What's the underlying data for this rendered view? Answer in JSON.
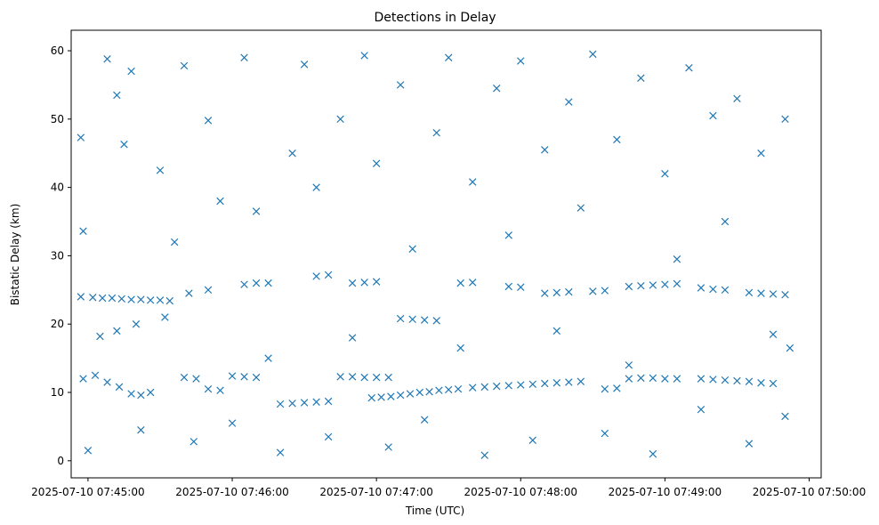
{
  "chart_data": {
    "type": "scatter",
    "title": "Detections in Delay",
    "xlabel": "Time (UTC)",
    "ylabel": "Bistatic Delay (km)",
    "x_unit": "time",
    "xlim": [
      "2025-07-10 07:44:53",
      "2025-07-10 07:50:05"
    ],
    "ylim": [
      -2.5,
      63
    ],
    "x_ticks": [
      "2025-07-10 07:45:00",
      "2025-07-10 07:46:00",
      "2025-07-10 07:47:00",
      "2025-07-10 07:48:00",
      "2025-07-10 07:49:00",
      "2025-07-10 07:50:00"
    ],
    "y_ticks": [
      0,
      10,
      20,
      30,
      40,
      50,
      60
    ],
    "grid": false,
    "legend": "none",
    "marker": "x",
    "color": "#1f77b4",
    "series": [
      {
        "points": [
          [
            "07:44:57",
            24.0
          ],
          [
            "07:45:02",
            23.9
          ],
          [
            "07:45:06",
            23.8
          ],
          [
            "07:45:10",
            23.8
          ],
          [
            "07:45:14",
            23.7
          ],
          [
            "07:45:18",
            23.6
          ],
          [
            "07:45:22",
            23.6
          ],
          [
            "07:45:26",
            23.5
          ],
          [
            "07:45:30",
            23.5
          ],
          [
            "07:45:34",
            23.4
          ],
          [
            "07:44:58",
            12.0
          ],
          [
            "07:45:03",
            12.5
          ],
          [
            "07:45:08",
            11.5
          ],
          [
            "07:45:13",
            10.8
          ],
          [
            "07:45:18",
            9.8
          ],
          [
            "07:45:22",
            9.6
          ],
          [
            "07:45:26",
            10.0
          ],
          [
            "07:45:40",
            12.2
          ],
          [
            "07:45:45",
            12.0
          ],
          [
            "07:45:50",
            10.5
          ],
          [
            "07:45:55",
            10.3
          ],
          [
            "07:46:00",
            12.4
          ],
          [
            "07:46:05",
            12.3
          ],
          [
            "07:46:10",
            12.2
          ],
          [
            "07:46:20",
            8.3
          ],
          [
            "07:46:25",
            8.4
          ],
          [
            "07:46:30",
            8.5
          ],
          [
            "07:46:35",
            8.6
          ],
          [
            "07:46:40",
            8.7
          ],
          [
            "07:46:45",
            12.3
          ],
          [
            "07:46:50",
            12.3
          ],
          [
            "07:46:55",
            12.2
          ],
          [
            "07:47:00",
            12.2
          ],
          [
            "07:47:05",
            12.2
          ],
          [
            "07:46:58",
            9.2
          ],
          [
            "07:47:02",
            9.3
          ],
          [
            "07:47:06",
            9.4
          ],
          [
            "07:47:10",
            9.6
          ],
          [
            "07:47:14",
            9.8
          ],
          [
            "07:47:18",
            10.0
          ],
          [
            "07:47:22",
            10.1
          ],
          [
            "07:47:26",
            10.3
          ],
          [
            "07:47:30",
            10.4
          ],
          [
            "07:47:34",
            10.5
          ],
          [
            "07:47:40",
            10.7
          ],
          [
            "07:47:45",
            10.8
          ],
          [
            "07:47:50",
            10.9
          ],
          [
            "07:47:55",
            11.0
          ],
          [
            "07:48:00",
            11.1
          ],
          [
            "07:48:05",
            11.2
          ],
          [
            "07:48:10",
            11.3
          ],
          [
            "07:48:15",
            11.4
          ],
          [
            "07:48:20",
            11.5
          ],
          [
            "07:48:25",
            11.6
          ],
          [
            "07:48:35",
            10.5
          ],
          [
            "07:48:40",
            10.6
          ],
          [
            "07:48:45",
            12.0
          ],
          [
            "07:48:50",
            12.1
          ],
          [
            "07:48:55",
            12.1
          ],
          [
            "07:49:00",
            12.0
          ],
          [
            "07:49:05",
            12.0
          ],
          [
            "07:49:15",
            12.0
          ],
          [
            "07:49:20",
            11.9
          ],
          [
            "07:49:25",
            11.8
          ],
          [
            "07:49:30",
            11.7
          ],
          [
            "07:49:35",
            11.6
          ],
          [
            "07:49:40",
            11.4
          ],
          [
            "07:49:45",
            11.3
          ],
          [
            "07:45:05",
            18.2
          ],
          [
            "07:45:12",
            19.0
          ],
          [
            "07:45:20",
            20.0
          ],
          [
            "07:45:32",
            21.0
          ],
          [
            "07:45:42",
            24.5
          ],
          [
            "07:45:50",
            25.0
          ],
          [
            "07:46:05",
            25.8
          ],
          [
            "07:46:10",
            26.0
          ],
          [
            "07:46:15",
            26.0
          ],
          [
            "07:46:35",
            27.0
          ],
          [
            "07:46:40",
            27.2
          ],
          [
            "07:46:50",
            26.0
          ],
          [
            "07:46:55",
            26.1
          ],
          [
            "07:47:00",
            26.2
          ],
          [
            "07:47:10",
            20.8
          ],
          [
            "07:47:15",
            20.7
          ],
          [
            "07:47:20",
            20.6
          ],
          [
            "07:47:25",
            20.5
          ],
          [
            "07:47:35",
            26.0
          ],
          [
            "07:47:40",
            26.1
          ],
          [
            "07:47:55",
            25.5
          ],
          [
            "07:48:00",
            25.4
          ],
          [
            "07:48:10",
            24.5
          ],
          [
            "07:48:15",
            24.6
          ],
          [
            "07:48:20",
            24.7
          ],
          [
            "07:48:30",
            24.8
          ],
          [
            "07:48:35",
            24.9
          ],
          [
            "07:48:45",
            25.5
          ],
          [
            "07:48:50",
            25.6
          ],
          [
            "07:48:55",
            25.7
          ],
          [
            "07:49:00",
            25.8
          ],
          [
            "07:49:05",
            25.9
          ],
          [
            "07:49:15",
            25.3
          ],
          [
            "07:49:20",
            25.1
          ],
          [
            "07:49:25",
            25.0
          ],
          [
            "07:49:35",
            24.6
          ],
          [
            "07:49:40",
            24.5
          ],
          [
            "07:49:45",
            24.4
          ],
          [
            "07:49:50",
            24.3
          ],
          [
            "07:44:57",
            47.3
          ],
          [
            "07:44:58",
            33.6
          ],
          [
            "07:45:00",
            1.5
          ],
          [
            "07:45:08",
            58.8
          ],
          [
            "07:45:12",
            53.5
          ],
          [
            "07:45:15",
            46.3
          ],
          [
            "07:45:18",
            57.0
          ],
          [
            "07:45:22",
            4.5
          ],
          [
            "07:45:30",
            42.5
          ],
          [
            "07:45:36",
            32.0
          ],
          [
            "07:45:40",
            57.8
          ],
          [
            "07:45:44",
            2.8
          ],
          [
            "07:45:50",
            49.8
          ],
          [
            "07:45:55",
            38.0
          ],
          [
            "07:46:00",
            5.5
          ],
          [
            "07:46:05",
            59.0
          ],
          [
            "07:46:10",
            36.5
          ],
          [
            "07:46:15",
            15.0
          ],
          [
            "07:46:20",
            1.2
          ],
          [
            "07:46:25",
            45.0
          ],
          [
            "07:46:30",
            58.0
          ],
          [
            "07:46:35",
            40.0
          ],
          [
            "07:46:40",
            3.5
          ],
          [
            "07:46:45",
            50.0
          ],
          [
            "07:46:50",
            18.0
          ],
          [
            "07:46:55",
            59.3
          ],
          [
            "07:47:00",
            43.5
          ],
          [
            "07:47:05",
            2.0
          ],
          [
            "07:47:10",
            55.0
          ],
          [
            "07:47:15",
            31.0
          ],
          [
            "07:47:20",
            6.0
          ],
          [
            "07:47:25",
            48.0
          ],
          [
            "07:47:30",
            59.0
          ],
          [
            "07:47:35",
            16.5
          ],
          [
            "07:47:40",
            40.8
          ],
          [
            "07:47:45",
            0.8
          ],
          [
            "07:47:50",
            54.5
          ],
          [
            "07:47:55",
            33.0
          ],
          [
            "07:48:00",
            58.5
          ],
          [
            "07:48:05",
            3.0
          ],
          [
            "07:48:10",
            45.5
          ],
          [
            "07:48:15",
            19.0
          ],
          [
            "07:48:20",
            52.5
          ],
          [
            "07:48:25",
            37.0
          ],
          [
            "07:48:30",
            59.5
          ],
          [
            "07:48:35",
            4.0
          ],
          [
            "07:48:40",
            47.0
          ],
          [
            "07:48:45",
            14.0
          ],
          [
            "07:48:50",
            56.0
          ],
          [
            "07:48:55",
            1.0
          ],
          [
            "07:49:00",
            42.0
          ],
          [
            "07:49:05",
            29.5
          ],
          [
            "07:49:10",
            57.5
          ],
          [
            "07:49:15",
            7.5
          ],
          [
            "07:49:20",
            50.5
          ],
          [
            "07:49:25",
            35.0
          ],
          [
            "07:49:30",
            53.0
          ],
          [
            "07:49:35",
            2.5
          ],
          [
            "07:49:40",
            45.0
          ],
          [
            "07:49:45",
            18.5
          ],
          [
            "07:49:50",
            50.0
          ],
          [
            "07:49:52",
            16.5
          ],
          [
            "07:49:50",
            6.5
          ]
        ]
      }
    ]
  }
}
